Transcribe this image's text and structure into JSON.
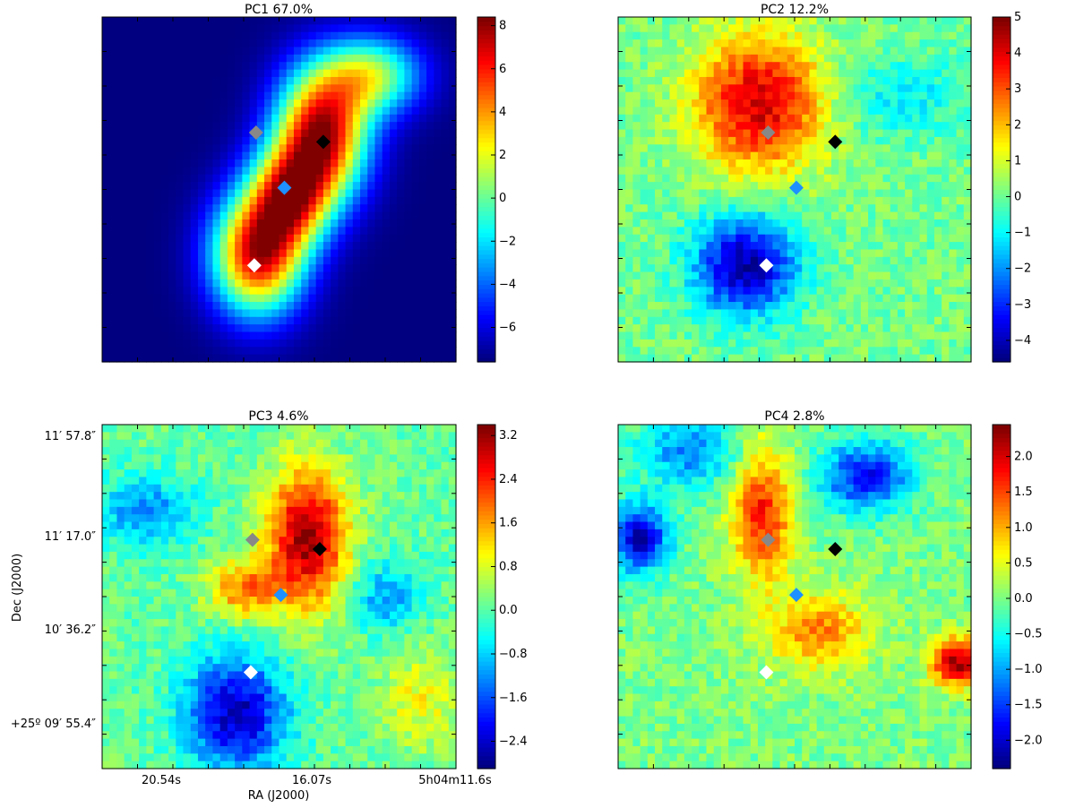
{
  "chart_data": [
    {
      "type": "heatmap",
      "title": "PC1 67.0%",
      "colormap": "jet",
      "colorbar": {
        "min": -7.6,
        "max": 8.4,
        "ticks": [
          -6,
          -4,
          -2,
          0,
          2,
          4,
          6,
          8
        ],
        "tick_labels": [
          "−6",
          "−4",
          "−2",
          "0",
          "2",
          "4",
          "6",
          "8"
        ]
      },
      "blobs": [
        {
          "x": 0.62,
          "y": 0.66,
          "sx": 0.09,
          "sy": 0.13,
          "a": 1.0
        },
        {
          "x": 0.44,
          "y": 0.31,
          "sx": 0.09,
          "sy": 0.12,
          "a": 0.95
        },
        {
          "x": 0.53,
          "y": 0.48,
          "sx": 0.08,
          "sy": 0.1,
          "a": 0.75
        },
        {
          "x": 0.76,
          "y": 0.83,
          "sx": 0.1,
          "sy": 0.08,
          "a": 0.55
        }
      ],
      "markers": [
        {
          "x": 0.435,
          "y": 0.665,
          "color": "#888888"
        },
        {
          "x": 0.625,
          "y": 0.638,
          "color": "#000000"
        },
        {
          "x": 0.515,
          "y": 0.505,
          "color": "#1e90ff"
        },
        {
          "x": 0.43,
          "y": 0.28,
          "color": "#ffffff"
        }
      ]
    },
    {
      "type": "heatmap",
      "title": "PC2 12.2%",
      "colormap": "jet",
      "colorbar": {
        "min": -4.6,
        "max": 5.0,
        "ticks": [
          -4,
          -3,
          -2,
          -1,
          0,
          1,
          2,
          3,
          4,
          5
        ],
        "tick_labels": [
          "−4",
          "−3",
          "−2",
          "−1",
          "0",
          "1",
          "2",
          "3",
          "4",
          "5"
        ]
      },
      "blobs": [
        {
          "x": 0.4,
          "y": 0.75,
          "sx": 0.13,
          "sy": 0.14,
          "a": 4.2
        },
        {
          "x": 0.36,
          "y": 0.28,
          "sx": 0.1,
          "sy": 0.1,
          "a": -4.4
        },
        {
          "x": 0.8,
          "y": 0.77,
          "sx": 0.13,
          "sy": 0.08,
          "a": -1.2
        }
      ],
      "markers": [
        {
          "x": 0.425,
          "y": 0.665,
          "color": "#888888"
        },
        {
          "x": 0.615,
          "y": 0.638,
          "color": "#000000"
        },
        {
          "x": 0.505,
          "y": 0.505,
          "color": "#1e90ff"
        },
        {
          "x": 0.42,
          "y": 0.28,
          "color": "#ffffff"
        }
      ]
    },
    {
      "type": "heatmap",
      "title": "PC3 4.6%",
      "xlabel": "RA (J2000)",
      "ylabel": "Dec (J2000)",
      "x_tick_labels": [
        "20.54s",
        "16.07s",
        "5h04m11.6s"
      ],
      "y_tick_labels": [
        "11′ 57.8″",
        "11′ 17.0″",
        "10′ 36.2″",
        "+25º 09′ 55.4″"
      ],
      "colormap": "jet",
      "colorbar": {
        "min": -2.9,
        "max": 3.4,
        "ticks": [
          -2.4,
          -1.6,
          -0.8,
          0.0,
          0.8,
          1.6,
          2.4,
          3.2
        ],
        "tick_labels": [
          "−2.4",
          "−1.6",
          "−0.8",
          "0.0",
          "0.8",
          "1.6",
          "2.4",
          "3.2"
        ]
      },
      "blobs": [
        {
          "x": 0.58,
          "y": 0.67,
          "sx": 0.08,
          "sy": 0.14,
          "a": 3.2
        },
        {
          "x": 0.4,
          "y": 0.52,
          "sx": 0.07,
          "sy": 0.06,
          "a": 1.8
        },
        {
          "x": 0.38,
          "y": 0.16,
          "sx": 0.1,
          "sy": 0.12,
          "a": -2.6
        },
        {
          "x": 0.12,
          "y": 0.75,
          "sx": 0.1,
          "sy": 0.07,
          "a": -1.3
        },
        {
          "x": 0.8,
          "y": 0.5,
          "sx": 0.07,
          "sy": 0.07,
          "a": -1.2
        },
        {
          "x": 0.9,
          "y": 0.2,
          "sx": 0.08,
          "sy": 0.1,
          "a": 0.9
        }
      ],
      "markers": [
        {
          "x": 0.425,
          "y": 0.665,
          "color": "#888888"
        },
        {
          "x": 0.615,
          "y": 0.638,
          "color": "#000000"
        },
        {
          "x": 0.505,
          "y": 0.505,
          "color": "#1e90ff"
        },
        {
          "x": 0.42,
          "y": 0.28,
          "color": "#ffffff"
        }
      ]
    },
    {
      "type": "heatmap",
      "title": "PC4 2.8%",
      "colormap": "jet",
      "colorbar": {
        "min": -2.4,
        "max": 2.45,
        "ticks": [
          -2.0,
          -1.5,
          -1.0,
          -0.5,
          0.0,
          0.5,
          1.0,
          1.5,
          2.0
        ],
        "tick_labels": [
          "−2.0",
          "−1.5",
          "−1.0",
          "−0.5",
          "0.0",
          "0.5",
          "1.0",
          "1.5",
          "2.0"
        ]
      },
      "blobs": [
        {
          "x": 0.41,
          "y": 0.74,
          "sx": 0.06,
          "sy": 0.14,
          "a": 1.7
        },
        {
          "x": 0.57,
          "y": 0.4,
          "sx": 0.1,
          "sy": 0.08,
          "a": 1.2
        },
        {
          "x": 0.96,
          "y": 0.31,
          "sx": 0.05,
          "sy": 0.05,
          "a": 2.3
        },
        {
          "x": 0.06,
          "y": 0.67,
          "sx": 0.06,
          "sy": 0.07,
          "a": -2.1
        },
        {
          "x": 0.7,
          "y": 0.85,
          "sx": 0.09,
          "sy": 0.07,
          "a": -1.8
        },
        {
          "x": 0.2,
          "y": 0.92,
          "sx": 0.1,
          "sy": 0.07,
          "a": -1.2
        }
      ],
      "markers": [
        {
          "x": 0.425,
          "y": 0.665,
          "color": "#888888"
        },
        {
          "x": 0.615,
          "y": 0.638,
          "color": "#000000"
        },
        {
          "x": 0.505,
          "y": 0.505,
          "color": "#1e90ff"
        },
        {
          "x": 0.42,
          "y": 0.28,
          "color": "#ffffff"
        }
      ]
    }
  ]
}
